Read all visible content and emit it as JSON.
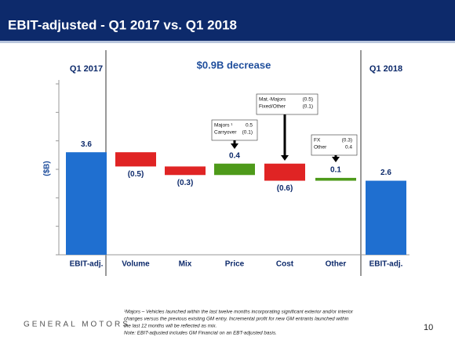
{
  "header": {
    "title": "EBIT-adjusted - Q1 2017 vs. Q1 2018"
  },
  "chart_data": {
    "type": "waterfall",
    "left_label": "Q1 2017",
    "center_label": "$0.9B decrease",
    "right_label": "Q1 2018",
    "ylabel": "($B)",
    "categories": [
      "EBIT-adj.",
      "Volume",
      "Mix",
      "Price",
      "Cost",
      "Other",
      "EBIT-adj."
    ],
    "measures": [
      "total",
      "relative",
      "relative",
      "relative",
      "relative",
      "relative",
      "total"
    ],
    "values": [
      3.6,
      -0.5,
      -0.3,
      0.4,
      -0.6,
      0.1,
      2.6
    ],
    "value_labels": [
      "3.6",
      "(0.5)",
      "(0.3)",
      "0.4",
      "(0.6)",
      "0.1",
      "2.6"
    ],
    "colors": {
      "total": "#1f6fd0",
      "increase": "#4e9a1a",
      "decrease": "#e02424"
    },
    "ylim": [
      0,
      6
    ],
    "yticks": [
      0,
      1,
      2,
      3,
      4,
      5,
      6
    ],
    "annotations": [
      {
        "category": 3,
        "rows": [
          [
            "Majors ¹",
            "0.5"
          ],
          [
            "Carryover",
            "(0.1)"
          ]
        ]
      },
      {
        "category": 4,
        "rows": [
          [
            "Mat.-Majors",
            "(0.5)"
          ],
          [
            "Fixed/Other",
            "(0.1)"
          ]
        ]
      },
      {
        "category": 5,
        "rows": [
          [
            "FX",
            "(0.3)"
          ],
          [
            "Other",
            "0.4"
          ]
        ]
      }
    ]
  },
  "footer": {
    "brand": "GENERAL MOTORS",
    "page": "10",
    "notes": [
      "¹Majors – Vehicles launched within the last twelve months incorporating significant exterior and/or interior",
      "changes versus the previous existing GM entry. Incremental profit for new GM entrants launched within",
      "the last 12 months will be reflected as mix.",
      "Note:  EBIT-adjusted includes GM Financial on an EBT-adjusted basis."
    ]
  }
}
